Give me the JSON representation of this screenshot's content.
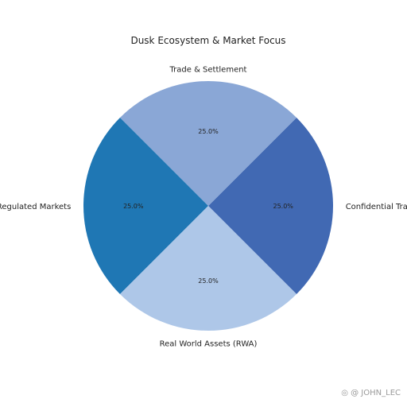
{
  "chart_data": {
    "type": "pie",
    "title": "Dusk Ecosystem & Market Focus",
    "slices": [
      {
        "label": "Confidential Trading",
        "value": 25,
        "pct_label": "25.0%",
        "color": "#4169b3"
      },
      {
        "label": "Trade & Settlement",
        "value": 25,
        "pct_label": "25.0%",
        "color": "#8aa7d6"
      },
      {
        "label": "Regulated Markets",
        "value": 25,
        "pct_label": "25.0%",
        "color": "#1f77b4"
      },
      {
        "label": "Real World Assets (RWA)",
        "value": 25,
        "pct_label": "25.0%",
        "color": "#aec7e8"
      }
    ],
    "start_angle_deg": -45,
    "direction": "counterclockwise"
  },
  "watermark": "◎ @ JOHN_LEC"
}
